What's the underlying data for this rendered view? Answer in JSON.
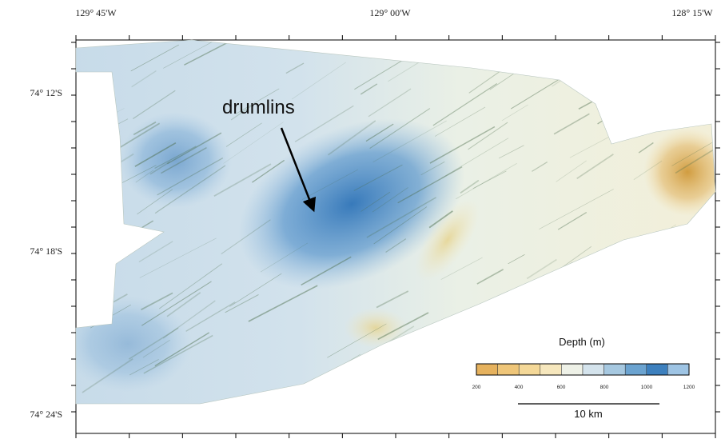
{
  "map": {
    "top_longitude_labels": [
      "129° 45'W",
      "129° 00'W",
      "128° 15'W"
    ],
    "left_latitude_labels": [
      "74° 12'S",
      "74° 18'S",
      "74° 24'S"
    ],
    "annotation": "drumlins",
    "legend": {
      "title": "Depth (m)",
      "tick_labels": [
        "200",
        "400",
        "600",
        "800",
        "1000",
        "1200"
      ],
      "colors": [
        "#e6b25e",
        "#efc679",
        "#f4d898",
        "#f6e7bd",
        "#eef1e7",
        "#d4e3ec",
        "#a6c8e0",
        "#6ba3d0",
        "#3d80be",
        "#9ec4e4"
      ]
    },
    "scale_bar_label": "10 km",
    "colors": {
      "shallow": "#d9a447",
      "mid": "#eef0e4",
      "deep": "#3e84c4",
      "hillshade": "#4d6e4c"
    }
  }
}
